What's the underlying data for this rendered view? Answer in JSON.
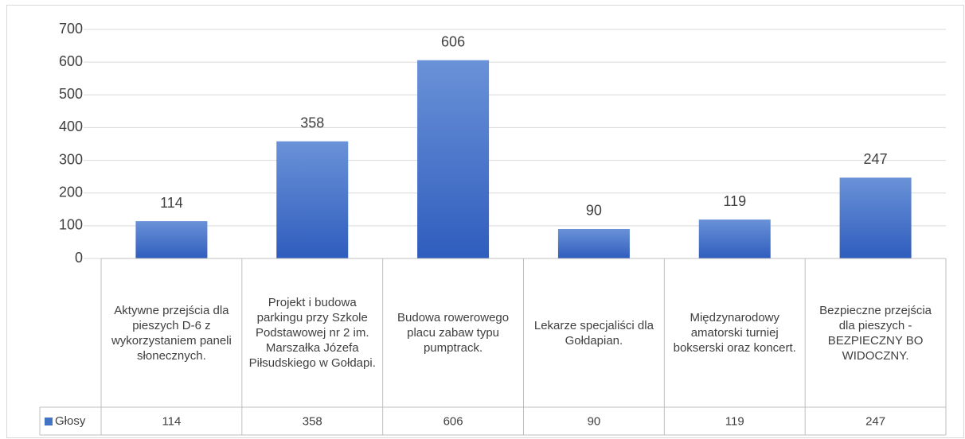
{
  "chart_data": {
    "type": "bar",
    "categories": [
      "Aktywne przejścia dla pieszych D-6 z wykorzystaniem paneli słonecznych.",
      "Projekt i budowa parkingu przy Szkole Podstawowej nr 2 im. Marszałka Józefa Piłsudskiego w Gołdapi.",
      "Budowa rowerowego placu zabaw typu pumptrack.",
      "Lekarze specjaliści dla Gołdapian.",
      "Międzynarodowy amatorski turniej bokserski oraz koncert.",
      "Bezpieczne przejścia dla pieszych - BEZPIECZNY BO WIDOCZNY."
    ],
    "series": [
      {
        "name": "Głosy",
        "color": "#4472c4",
        "values": [
          114,
          358,
          606,
          90,
          119,
          247
        ]
      }
    ],
    "ylim": [
      0,
      700
    ],
    "yticks": [
      0,
      100,
      200,
      300,
      400,
      500,
      600,
      700
    ],
    "grid": true,
    "data_table": true
  }
}
